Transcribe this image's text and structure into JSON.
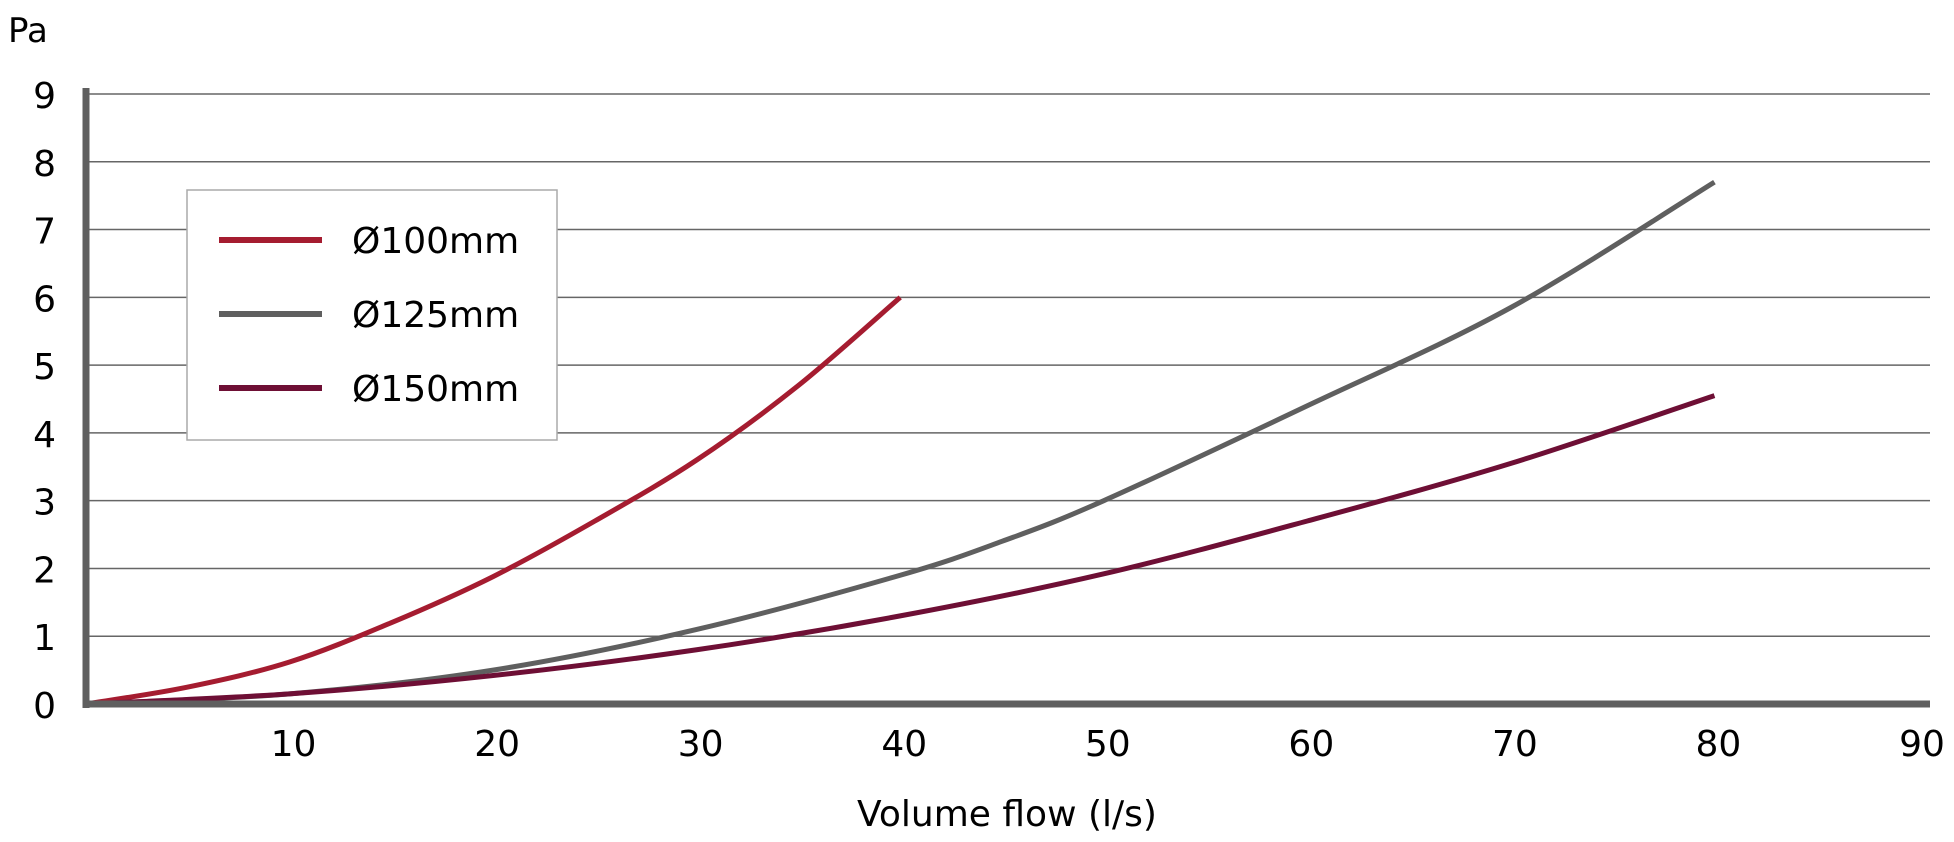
{
  "chart_data": {
    "type": "line",
    "title": "",
    "xlabel": "Volume flow (l/s)",
    "ylabel": "Pa",
    "xlim": [
      0,
      90
    ],
    "ylim": [
      0,
      9
    ],
    "xticks": [
      10,
      20,
      30,
      40,
      50,
      60,
      70,
      80,
      90
    ],
    "yticks": [
      0,
      1,
      2,
      3,
      4,
      5,
      6,
      7,
      8,
      9
    ],
    "grid": "horizontal",
    "legend_position": "top-left",
    "series": [
      {
        "name": "Ø100mm",
        "color": "#a51c30",
        "x": [
          0,
          5,
          10,
          15,
          20,
          25,
          30,
          35,
          40
        ],
        "y": [
          0,
          0.25,
          0.62,
          1.2,
          1.88,
          2.7,
          3.6,
          4.7,
          6.0
        ]
      },
      {
        "name": "Ø125mm",
        "color": "#5f5f5f",
        "x": [
          0,
          10,
          20,
          30,
          40,
          45,
          50,
          60,
          70,
          80
        ],
        "y": [
          0,
          0.15,
          0.5,
          1.1,
          1.9,
          2.4,
          3.0,
          4.4,
          5.85,
          7.7
        ]
      },
      {
        "name": "Ø150mm",
        "color": "#6e0f35",
        "x": [
          0,
          10,
          20,
          30,
          40,
          50,
          60,
          70,
          80
        ],
        "y": [
          0,
          0.15,
          0.42,
          0.8,
          1.3,
          1.92,
          2.7,
          3.55,
          4.55
        ]
      }
    ]
  }
}
